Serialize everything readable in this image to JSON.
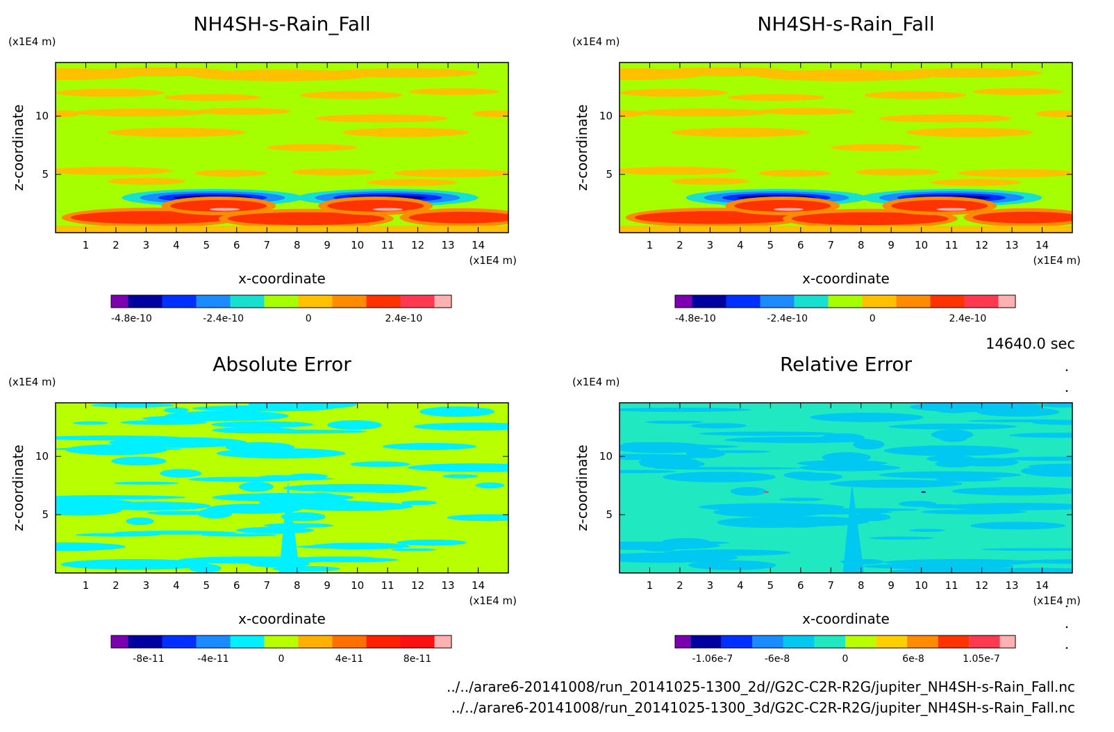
{
  "time_label": "14640.0 sec",
  "footer": {
    "file1": "../../arare6-20141008/run_20141025-1300_2d//G2C-C2R-R2G/jupiter_NH4SH-s-Rain_Fall.nc",
    "file2": "../../arare6-20141008/run_20141025-1300_3d/G2C-C2R-R2G/jupiter_NH4SH-s-Rain_Fall.nc"
  },
  "colors": {
    "rain_palette": [
      "#7a00b0",
      "#0000a0",
      "#0030ff",
      "#1a8cff",
      "#16e0d0",
      "#a6ff00",
      "#ffc000",
      "#ff8c00",
      "#ff3300",
      "#ff3a50",
      "#ffb0b0"
    ],
    "abs_palette": [
      "#7a00b0",
      "#0000a0",
      "#0030ff",
      "#1a8cff",
      "#00f0ff",
      "#b8ff00",
      "#ffb000",
      "#ff7000",
      "#ff2000",
      "#ff1010",
      "#ffb0b0"
    ],
    "rel_palette": [
      "#7a00b0",
      "#0000a0",
      "#0030ff",
      "#1a8cff",
      "#00c8f0",
      "#20e8c0",
      "#b8ff00",
      "#ffd000",
      "#ff8c00",
      "#ff3300",
      "#ff3a50",
      "#ffb0b0"
    ]
  },
  "chart_data": [
    {
      "id": "panel-2d",
      "type": "heatmap",
      "title": "NH4SH-s-Rain_Fall",
      "xlabel": "x-coordinate",
      "ylabel": "z-coordinate",
      "x_unit": "(x1E4 m)",
      "z_unit": "(x1E4 m)",
      "xlim": [
        0,
        15
      ],
      "zlim": [
        0,
        14.6
      ],
      "x_ticks": [
        "1",
        "2",
        "3",
        "4",
        "5",
        "6",
        "7",
        "8",
        "9",
        "10",
        "11",
        "12",
        "13",
        "14"
      ],
      "z_ticks": [
        "5",
        "10"
      ],
      "colorbar": {
        "labels": [
          "-4.8e-10",
          "-2.4e-10",
          "0",
          "2.4e-10"
        ],
        "palette": "rain_palette"
      },
      "pattern": "rain"
    },
    {
      "id": "panel-3d",
      "type": "heatmap",
      "title": "NH4SH-s-Rain_Fall",
      "xlabel": "x-coordinate",
      "ylabel": "z-coordinate",
      "x_unit": "(x1E4 m)",
      "z_unit": "(x1E4 m)",
      "xlim": [
        0,
        15
      ],
      "zlim": [
        0,
        14.6
      ],
      "x_ticks": [
        "1",
        "2",
        "3",
        "4",
        "5",
        "6",
        "7",
        "8",
        "9",
        "10",
        "11",
        "12",
        "13",
        "14"
      ],
      "z_ticks": [
        "5",
        "10"
      ],
      "colorbar": {
        "labels": [
          "-4.8e-10",
          "-2.4e-10",
          "0",
          "2.4e-10"
        ],
        "palette": "rain_palette"
      },
      "pattern": "rain"
    },
    {
      "id": "panel-abs",
      "type": "heatmap",
      "title": "Absolute Error",
      "xlabel": "x-coordinate",
      "ylabel": "z-coordinate",
      "x_unit": "(x1E4 m)",
      "z_unit": "(x1E4 m)",
      "xlim": [
        0,
        15
      ],
      "zlim": [
        0,
        14.6
      ],
      "x_ticks": [
        "1",
        "2",
        "3",
        "4",
        "5",
        "6",
        "7",
        "8",
        "9",
        "10",
        "11",
        "12",
        "13",
        "14"
      ],
      "z_ticks": [
        "5",
        "10"
      ],
      "colorbar": {
        "labels": [
          "-8e-11",
          "-4e-11",
          "0",
          "4e-11",
          "8e-11"
        ],
        "palette": "abs_palette"
      },
      "pattern": "abs"
    },
    {
      "id": "panel-rel",
      "type": "heatmap",
      "title": "Relative Error",
      "xlabel": "x-coordinate",
      "ylabel": "z-coordinate",
      "x_unit": "(x1E4 m)",
      "z_unit": "(x1E4 m)",
      "xlim": [
        0,
        15
      ],
      "zlim": [
        0,
        14.6
      ],
      "x_ticks": [
        "1",
        "2",
        "3",
        "4",
        "5",
        "6",
        "7",
        "8",
        "9",
        "10",
        "11",
        "12",
        "13",
        "14"
      ],
      "z_ticks": [
        "5",
        "10"
      ],
      "colorbar": {
        "labels": [
          "-1.06e-7",
          "-6e-8",
          "0",
          "6e-8",
          "1.05e-7"
        ],
        "palette": "rel_palette"
      },
      "pattern": "rel"
    }
  ]
}
